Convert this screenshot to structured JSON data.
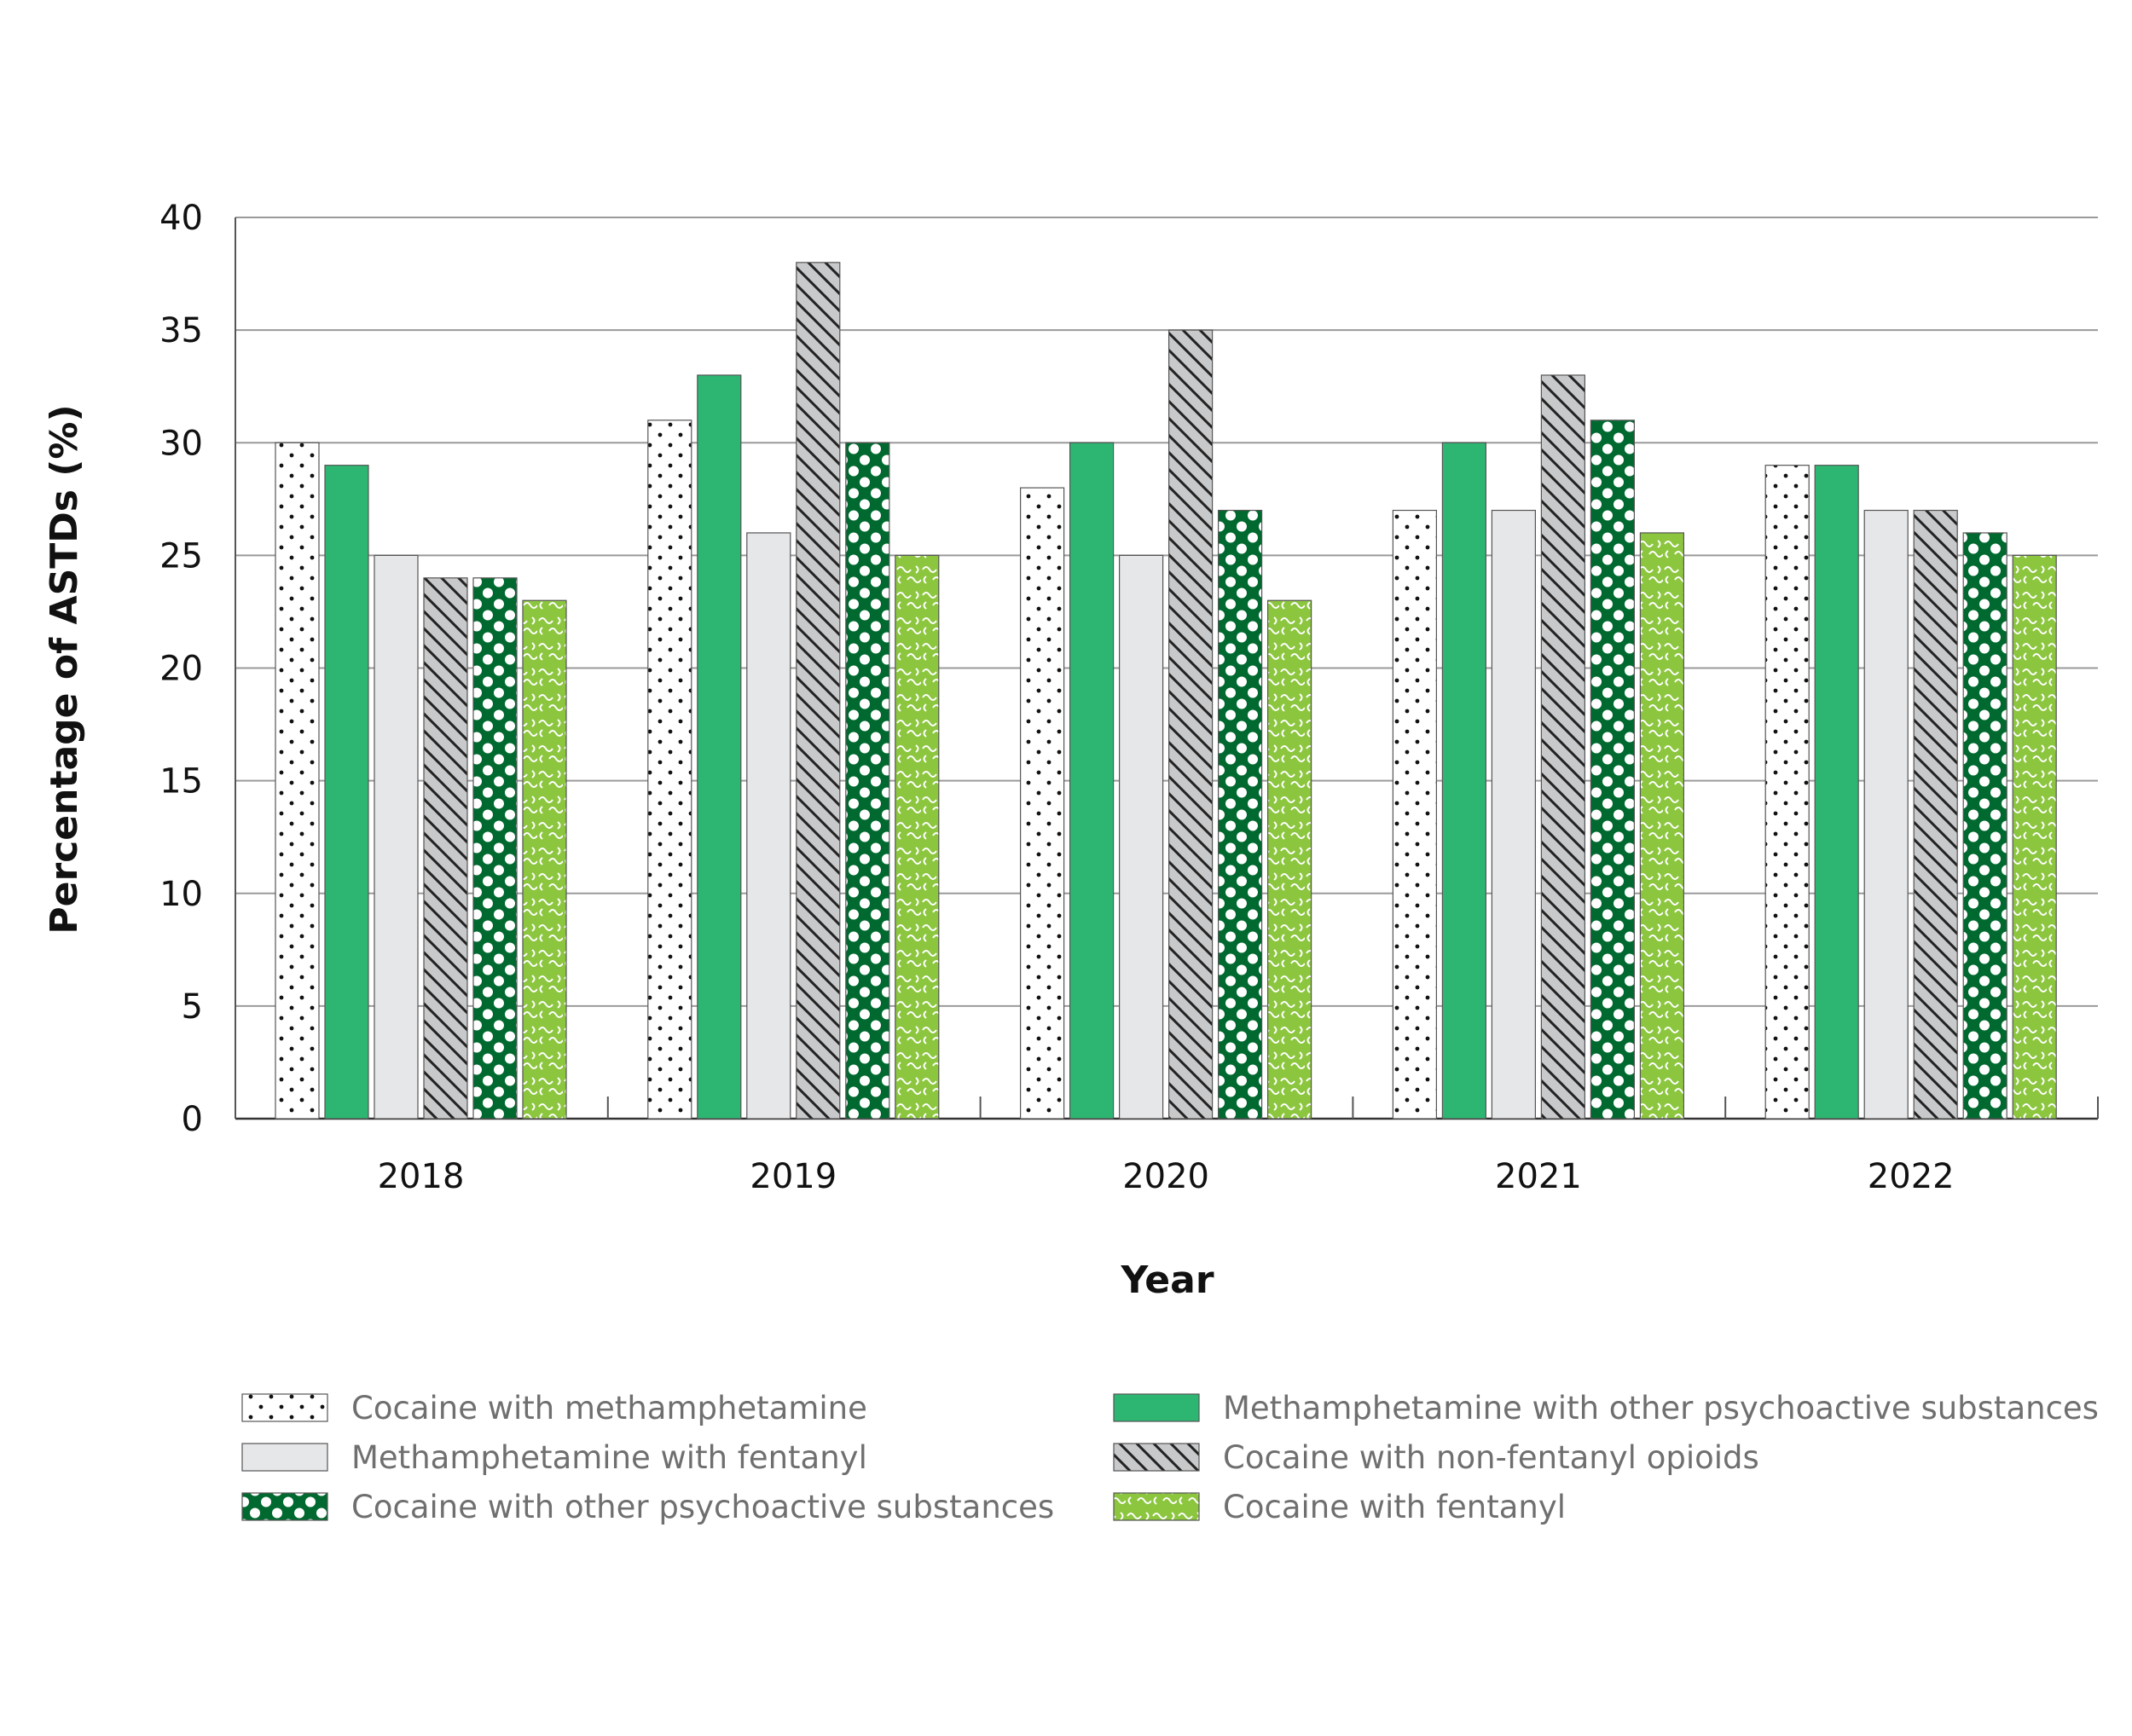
{
  "chart_data": {
    "type": "bar",
    "title": "",
    "xlabel": "Year",
    "ylabel": "Percentage of ASTDs (%)",
    "ylim": [
      0,
      40
    ],
    "yticks": [
      0,
      5,
      10,
      15,
      20,
      25,
      30,
      35,
      40
    ],
    "grid": true,
    "legend_position": "bottom",
    "categories": [
      "2018",
      "2019",
      "2020",
      "2021",
      "2022"
    ],
    "series": [
      {
        "name": "Cocaine with methamphetamine",
        "values": [
          30,
          31,
          28,
          27,
          29
        ],
        "fill": "dots",
        "color": "#ffffff"
      },
      {
        "name": "Methamphetamine with other psychoactive substances",
        "values": [
          29,
          33,
          30,
          30,
          29
        ],
        "fill": "solid",
        "color": "#2db672"
      },
      {
        "name": "Methamphetamine with fentanyl",
        "values": [
          25,
          26,
          25,
          27,
          27
        ],
        "fill": "solid",
        "color": "#e6e7e8"
      },
      {
        "name": "Cocaine with non-fentanyl opioids",
        "values": [
          24,
          38,
          35,
          33,
          27
        ],
        "fill": "diagonal-stripes",
        "color": "#c8c9cb"
      },
      {
        "name": "Cocaine with other psychoactive substances",
        "values": [
          24,
          30,
          27,
          31,
          26
        ],
        "fill": "polka-dots",
        "color": "#00692f"
      },
      {
        "name": "Cocaine with fentanyl",
        "values": [
          23,
          25,
          23,
          26,
          25
        ],
        "fill": "squiggles",
        "color": "#8cc63f"
      }
    ],
    "legend_order": [
      0,
      1,
      2,
      3,
      4,
      5
    ]
  }
}
